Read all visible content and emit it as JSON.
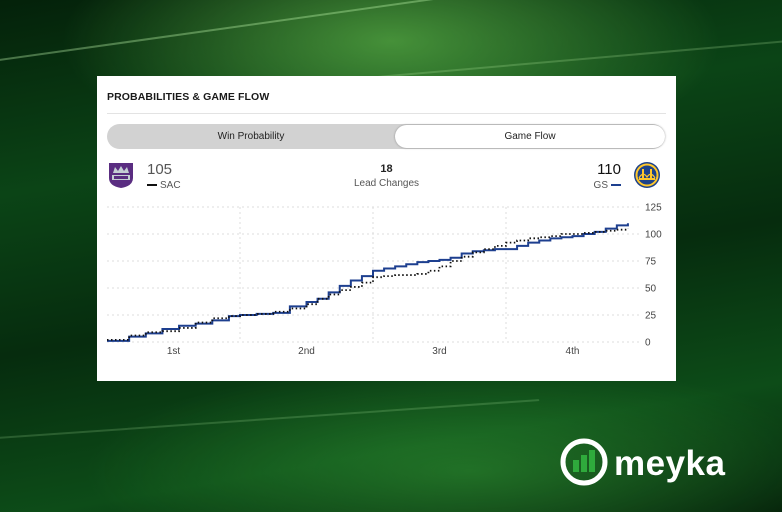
{
  "card": {
    "title": "PROBABILITIES & GAME FLOW",
    "tabs": [
      {
        "label": "Win Probability",
        "active": false
      },
      {
        "label": "Game Flow",
        "active": true
      }
    ]
  },
  "teams": {
    "away": {
      "abbr": "SAC",
      "score": "105",
      "logo": "kings-crown-shield-logo",
      "color": "#5a2d81"
    },
    "home": {
      "abbr": "GS",
      "score": "110",
      "logo": "warriors-bridge-logo",
      "color": "#1d428a"
    }
  },
  "lead_changes": {
    "value": "18",
    "label": "Lead Changes"
  },
  "chart_data": {
    "type": "line",
    "x_unit": "game minutes elapsed",
    "xlim": [
      0,
      48
    ],
    "ylim": [
      0,
      125
    ],
    "y_ticks": [
      0,
      25,
      50,
      75,
      100,
      125
    ],
    "x_tick_labels": [
      "1st",
      "2nd",
      "3rd",
      "4th"
    ],
    "grid": true,
    "series": [
      {
        "name": "GS",
        "style": "solid",
        "color": "#1d3f8f",
        "x": [
          0,
          2,
          3.5,
          5,
          6.5,
          8,
          9.5,
          11,
          12,
          13.5,
          15,
          16.5,
          18,
          19,
          20,
          21,
          22,
          23,
          24,
          25,
          26,
          27,
          28,
          29,
          30,
          31,
          32,
          33,
          34,
          35,
          36,
          37,
          38,
          39,
          40,
          41,
          42,
          43,
          44,
          45,
          46,
          47
        ],
        "y": [
          1,
          5,
          8,
          12,
          15,
          17,
          20,
          24,
          25,
          26,
          27,
          33,
          37,
          40,
          46,
          52,
          57,
          61,
          66,
          68,
          70,
          72,
          74,
          75,
          76,
          78,
          82,
          84,
          85,
          86,
          86,
          89,
          92,
          94,
          96,
          97,
          98,
          100,
          102,
          105,
          108,
          110
        ]
      },
      {
        "name": "SAC",
        "style": "dotted",
        "color": "#111111",
        "x": [
          0,
          2,
          3.5,
          5,
          6.5,
          8,
          9.5,
          11,
          12,
          13.5,
          15,
          16.5,
          18,
          19,
          20,
          21,
          22,
          23,
          24,
          25,
          26,
          27,
          28,
          29,
          30,
          31,
          32,
          33,
          34,
          35,
          36,
          37,
          38,
          39,
          40,
          41,
          42,
          43,
          44,
          45,
          46,
          47
        ],
        "y": [
          2,
          6,
          9,
          10,
          13,
          18,
          22,
          24,
          25,
          26,
          28,
          31,
          35,
          40,
          44,
          48,
          51,
          55,
          60,
          61,
          62,
          62,
          63,
          66,
          70,
          75,
          79,
          83,
          86,
          89,
          92,
          94,
          96,
          97,
          98,
          100,
          100,
          101,
          102,
          103,
          104,
          105
        ]
      }
    ]
  },
  "brand": {
    "name": "meyka",
    "logo": "meyka-chart-logo"
  }
}
